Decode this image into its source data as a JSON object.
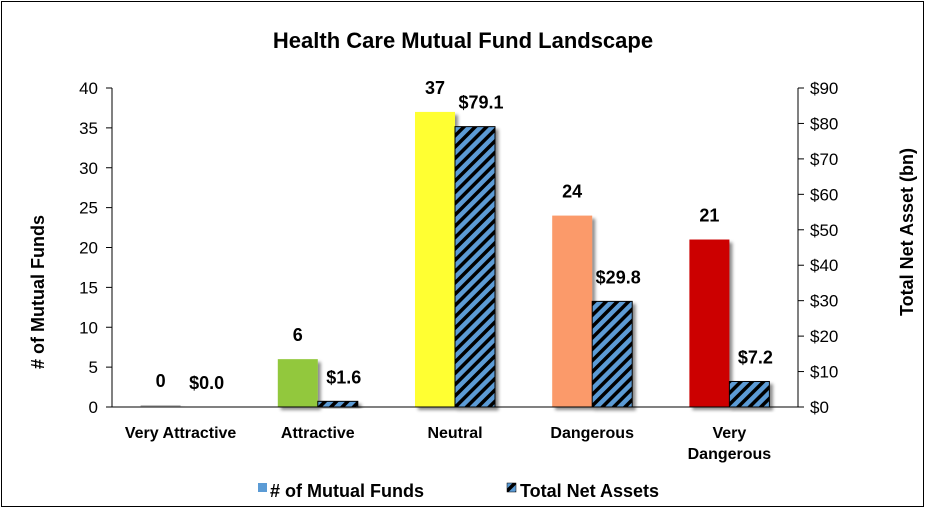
{
  "chart_data": {
    "type": "bar",
    "title": "Health Care Mutual Fund Landscape",
    "categories": [
      "Very Attractive",
      "Attractive",
      "Neutral",
      "Dangerous",
      "Very Dangerous"
    ],
    "series": [
      {
        "name": "# of Mutual Funds",
        "axis": "left",
        "values": [
          0,
          6,
          37,
          24,
          21
        ],
        "labels": [
          "0",
          "6",
          "37",
          "24",
          "21"
        ],
        "colors": [
          "#c0c0c0",
          "#92c83e",
          "#ffff33",
          "#fb9a6a",
          "#cc0000"
        ]
      },
      {
        "name": "Total Net Assets",
        "axis": "right",
        "values": [
          0.0,
          1.6,
          79.1,
          29.8,
          7.2
        ],
        "labels": [
          "$0.0",
          "$1.6",
          "$79.1",
          "$29.8",
          "$7.2"
        ],
        "colors": [
          "#5b9bd5",
          "#000000"
        ]
      }
    ],
    "ylabel": "# of Mutual Funds",
    "y2label": "Total Net Asset (bn)",
    "ylim": [
      0,
      40
    ],
    "y2lim": [
      0,
      90
    ],
    "yticks": [
      "0",
      "5",
      "10",
      "15",
      "20",
      "25",
      "30",
      "35",
      "40"
    ],
    "y2ticks": [
      "$0",
      "$10",
      "$20",
      "$30",
      "$40",
      "$50",
      "$60",
      "$70",
      "$80",
      "$90"
    ],
    "legend_position": "bottom",
    "grid": false
  }
}
